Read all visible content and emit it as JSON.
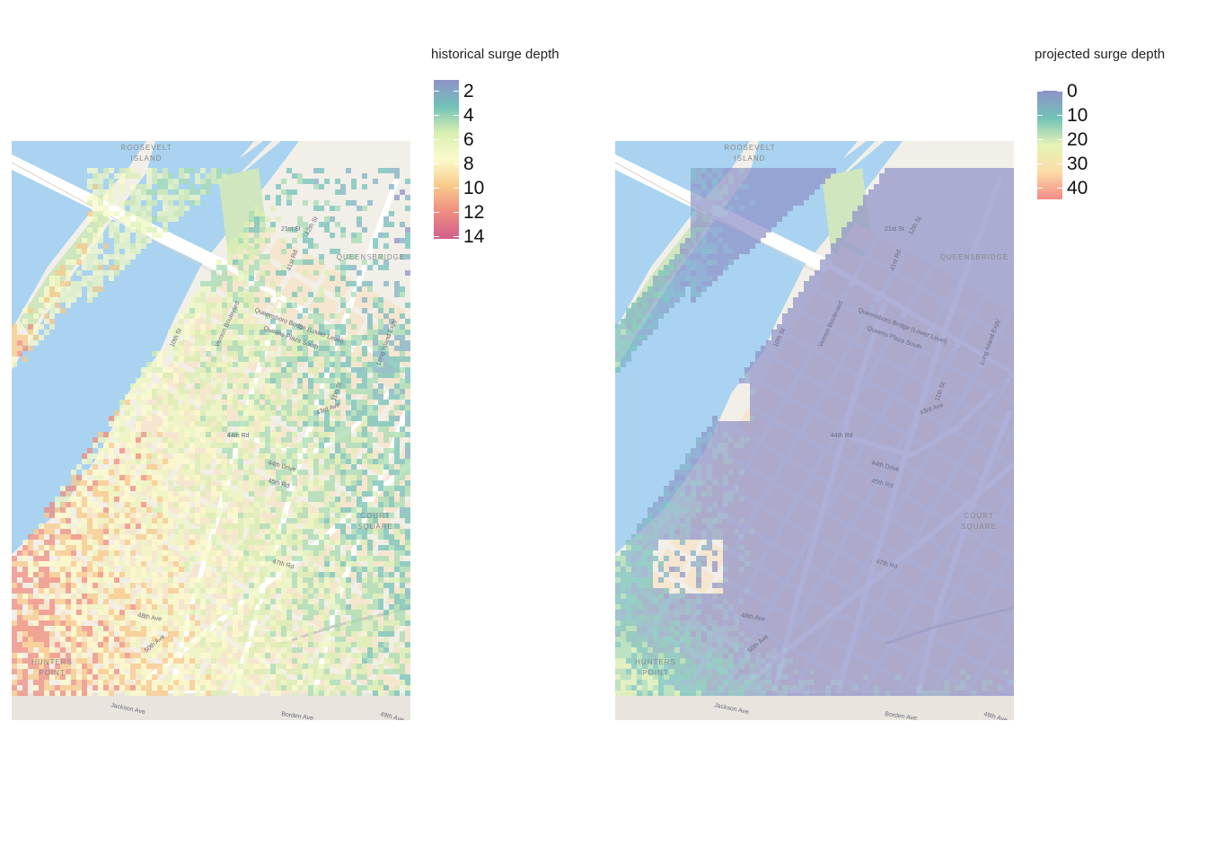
{
  "panels": [
    {
      "legend": {
        "title": "historical surge depth",
        "labels": [
          "2",
          "4",
          "6",
          "8",
          "10",
          "12",
          "14"
        ],
        "colors": [
          "#8f92c9",
          "#71c2b8",
          "#d9efb1",
          "#fcfbcb",
          "#f8c98a",
          "#ef8c80",
          "#cf5f8d"
        ]
      }
    },
    {
      "legend": {
        "title": "projected surge depth",
        "labels": [
          "0",
          "10",
          "20",
          "30",
          "40"
        ],
        "colors": [
          "#8f92c9",
          "#71c2b8",
          "#e6f3b6",
          "#fbdca6",
          "#f28a86"
        ]
      }
    }
  ],
  "basemap": {
    "places": [
      "ROOSEVELT",
      "ISLAND",
      "QUEENSBRIDGE",
      "COURT",
      "SQUARE",
      "HUNTERS",
      "POINT"
    ],
    "streets": [
      "Queensboro Bridge (Lower Level)",
      "Queens Plaza South",
      "Vernon Boulevard",
      "43rd Ave",
      "44th Rd",
      "44th Drive",
      "45th Rd",
      "47th Rd",
      "48th Ave",
      "49th Ave",
      "50th Ave",
      "Jackson Ave",
      "Borden Ave",
      "Long Island Expy",
      "11th St",
      "21st St",
      "41st Rd",
      "12th St",
      "10th St",
      "Vernon Boulevard"
    ],
    "colors": {
      "water": "#a9d3f0",
      "land": "#f2efe9",
      "block": "#f6e6cf",
      "road": "#ffffff",
      "park": "#cfe6bf"
    }
  }
}
